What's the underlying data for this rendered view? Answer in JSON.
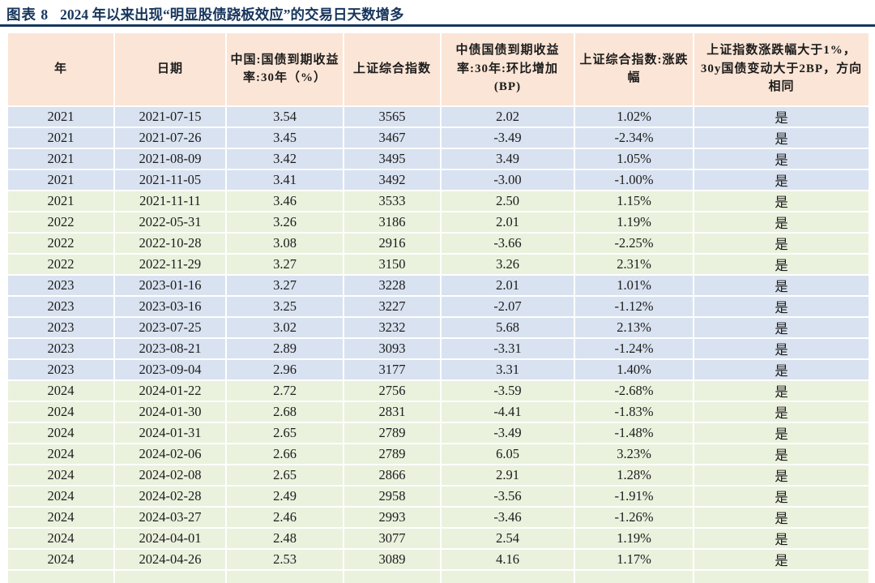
{
  "page": {
    "title_prefix": "图表 8",
    "title": "2024 年以来出现“明显股债跷板效应”的交易日天数增多"
  },
  "colors": {
    "title_navy": "#17365d",
    "header_bg": "#fbe5d6",
    "band_blue": "#d9e2f0",
    "band_green": "#eaf1dd"
  },
  "table": {
    "columns": [
      {
        "label": "年"
      },
      {
        "label": "日期"
      },
      {
        "label": "中国:国债到期收益率:30年（%）"
      },
      {
        "label": "上证综合指数"
      },
      {
        "label": "中债国债到期收益率:30年:环比增加(BP)"
      },
      {
        "label": "上证综合指数:涨跌幅"
      },
      {
        "label": "上证指数涨跌幅大于1%，30y国债变动大于2BP，方向相同"
      }
    ],
    "rows": [
      {
        "year": "2021",
        "date": "2021-07-15",
        "cgb_yield_30y": "3.54",
        "sse_index": "3565",
        "yield_chg_bp": "2.02",
        "sse_change_pct": "1.02%",
        "same_direction": "是",
        "band": "blue"
      },
      {
        "year": "2021",
        "date": "2021-07-26",
        "cgb_yield_30y": "3.45",
        "sse_index": "3467",
        "yield_chg_bp": "-3.49",
        "sse_change_pct": "-2.34%",
        "same_direction": "是",
        "band": "blue"
      },
      {
        "year": "2021",
        "date": "2021-08-09",
        "cgb_yield_30y": "3.42",
        "sse_index": "3495",
        "yield_chg_bp": "3.49",
        "sse_change_pct": "1.05%",
        "same_direction": "是",
        "band": "blue"
      },
      {
        "year": "2021",
        "date": "2021-11-05",
        "cgb_yield_30y": "3.41",
        "sse_index": "3492",
        "yield_chg_bp": "-3.00",
        "sse_change_pct": "-1.00%",
        "same_direction": "是",
        "band": "blue"
      },
      {
        "year": "2021",
        "date": "2021-11-11",
        "cgb_yield_30y": "3.46",
        "sse_index": "3533",
        "yield_chg_bp": "2.50",
        "sse_change_pct": "1.15%",
        "same_direction": "是",
        "band": "green"
      },
      {
        "year": "2022",
        "date": "2022-05-31",
        "cgb_yield_30y": "3.26",
        "sse_index": "3186",
        "yield_chg_bp": "2.01",
        "sse_change_pct": "1.19%",
        "same_direction": "是",
        "band": "green"
      },
      {
        "year": "2022",
        "date": "2022-10-28",
        "cgb_yield_30y": "3.08",
        "sse_index": "2916",
        "yield_chg_bp": "-3.66",
        "sse_change_pct": "-2.25%",
        "same_direction": "是",
        "band": "green"
      },
      {
        "year": "2022",
        "date": "2022-11-29",
        "cgb_yield_30y": "3.27",
        "sse_index": "3150",
        "yield_chg_bp": "3.26",
        "sse_change_pct": "2.31%",
        "same_direction": "是",
        "band": "green"
      },
      {
        "year": "2023",
        "date": "2023-01-16",
        "cgb_yield_30y": "3.27",
        "sse_index": "3228",
        "yield_chg_bp": "2.01",
        "sse_change_pct": "1.01%",
        "same_direction": "是",
        "band": "blue"
      },
      {
        "year": "2023",
        "date": "2023-03-16",
        "cgb_yield_30y": "3.25",
        "sse_index": "3227",
        "yield_chg_bp": "-2.07",
        "sse_change_pct": "-1.12%",
        "same_direction": "是",
        "band": "blue"
      },
      {
        "year": "2023",
        "date": "2023-07-25",
        "cgb_yield_30y": "3.02",
        "sse_index": "3232",
        "yield_chg_bp": "5.68",
        "sse_change_pct": "2.13%",
        "same_direction": "是",
        "band": "blue"
      },
      {
        "year": "2023",
        "date": "2023-08-21",
        "cgb_yield_30y": "2.89",
        "sse_index": "3093",
        "yield_chg_bp": "-3.31",
        "sse_change_pct": "-1.24%",
        "same_direction": "是",
        "band": "blue"
      },
      {
        "year": "2023",
        "date": "2023-09-04",
        "cgb_yield_30y": "2.96",
        "sse_index": "3177",
        "yield_chg_bp": "3.31",
        "sse_change_pct": "1.40%",
        "same_direction": "是",
        "band": "blue"
      },
      {
        "year": "2024",
        "date": "2024-01-22",
        "cgb_yield_30y": "2.72",
        "sse_index": "2756",
        "yield_chg_bp": "-3.59",
        "sse_change_pct": "-2.68%",
        "same_direction": "是",
        "band": "green"
      },
      {
        "year": "2024",
        "date": "2024-01-30",
        "cgb_yield_30y": "2.68",
        "sse_index": "2831",
        "yield_chg_bp": "-4.41",
        "sse_change_pct": "-1.83%",
        "same_direction": "是",
        "band": "green"
      },
      {
        "year": "2024",
        "date": "2024-01-31",
        "cgb_yield_30y": "2.65",
        "sse_index": "2789",
        "yield_chg_bp": "-3.49",
        "sse_change_pct": "-1.48%",
        "same_direction": "是",
        "band": "green"
      },
      {
        "year": "2024",
        "date": "2024-02-06",
        "cgb_yield_30y": "2.66",
        "sse_index": "2789",
        "yield_chg_bp": "6.05",
        "sse_change_pct": "3.23%",
        "same_direction": "是",
        "band": "green"
      },
      {
        "year": "2024",
        "date": "2024-02-08",
        "cgb_yield_30y": "2.65",
        "sse_index": "2866",
        "yield_chg_bp": "2.91",
        "sse_change_pct": "1.28%",
        "same_direction": "是",
        "band": "green"
      },
      {
        "year": "2024",
        "date": "2024-02-28",
        "cgb_yield_30y": "2.49",
        "sse_index": "2958",
        "yield_chg_bp": "-3.56",
        "sse_change_pct": "-1.91%",
        "same_direction": "是",
        "band": "green"
      },
      {
        "year": "2024",
        "date": "2024-03-27",
        "cgb_yield_30y": "2.46",
        "sse_index": "2993",
        "yield_chg_bp": "-3.46",
        "sse_change_pct": "-1.26%",
        "same_direction": "是",
        "band": "green"
      },
      {
        "year": "2024",
        "date": "2024-04-01",
        "cgb_yield_30y": "2.48",
        "sse_index": "3077",
        "yield_chg_bp": "2.54",
        "sse_change_pct": "1.19%",
        "same_direction": "是",
        "band": "green"
      },
      {
        "year": "2024",
        "date": "2024-04-26",
        "cgb_yield_30y": "2.53",
        "sse_index": "3089",
        "yield_chg_bp": "4.16",
        "sse_change_pct": "1.17%",
        "same_direction": "是",
        "band": "green"
      }
    ],
    "partial_row_band": "green"
  }
}
